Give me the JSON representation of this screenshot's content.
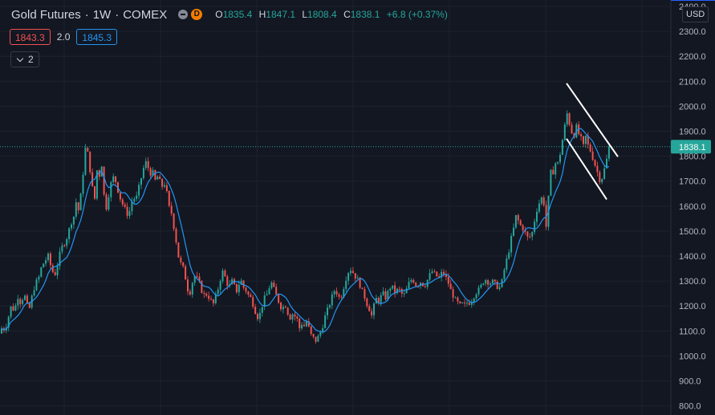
{
  "header": {
    "symbol": "Gold Futures",
    "separator": "·",
    "interval": "1W",
    "exchange": "COMEX",
    "delay_badge": "D",
    "ohlc": {
      "o_label": "O",
      "o_value": "1835.4",
      "h_label": "H",
      "h_value": "1847.1",
      "l_label": "L",
      "l_value": "1808.4",
      "c_label": "C",
      "c_value": "1838.1",
      "change": "+6.8 (+0.37%)"
    }
  },
  "indicator": {
    "value_red": "1843.3",
    "param": "2.0",
    "value_blue": "1845.3"
  },
  "collapse": {
    "count": "2"
  },
  "axis": {
    "currency": "USD",
    "ticks": [
      "2400.0",
      "2300.0",
      "2200.0",
      "2100.0",
      "2000.0",
      "1900.0",
      "1800.0",
      "1700.0",
      "1600.0",
      "1500.0",
      "1400.0",
      "1300.0",
      "1200.0",
      "1100.0",
      "1000.0",
      "900.0",
      "800.0"
    ],
    "last_price_label": "1838.1"
  },
  "colors": {
    "background": "#131722",
    "up": "#26a69a",
    "down": "#ef5350",
    "ma": "#2196f3",
    "grid": "#1e222d",
    "channel": "#ffffff"
  },
  "chart_data": {
    "type": "candlestick",
    "title": "Gold Futures · 1W · COMEX",
    "ylim": [
      800,
      2400
    ],
    "last_price": 1838.1,
    "path_points": [
      [
        0,
        1090
      ],
      [
        3,
        1120
      ],
      [
        6,
        1100
      ],
      [
        10,
        1150
      ],
      [
        14,
        1200
      ],
      [
        18,
        1180
      ],
      [
        22,
        1240
      ],
      [
        26,
        1210
      ],
      [
        30,
        1250
      ],
      [
        34,
        1200
      ],
      [
        36,
        1180
      ],
      [
        40,
        1240
      ],
      [
        44,
        1290
      ],
      [
        48,
        1310
      ],
      [
        52,
        1360
      ],
      [
        56,
        1380
      ],
      [
        60,
        1400
      ],
      [
        64,
        1350
      ],
      [
        68,
        1320
      ],
      [
        72,
        1370
      ],
      [
        76,
        1430
      ],
      [
        80,
        1450
      ],
      [
        84,
        1480
      ],
      [
        88,
        1530
      ],
      [
        92,
        1560
      ],
      [
        95,
        1620
      ],
      [
        98,
        1580
      ],
      [
        101,
        1650
      ],
      [
        104,
        1750
      ],
      [
        106,
        1820
      ],
      [
        108,
        1870
      ],
      [
        110,
        1780
      ],
      [
        112,
        1750
      ],
      [
        114,
        1700
      ],
      [
        116,
        1650
      ],
      [
        118,
        1630
      ],
      [
        120,
        1730
      ],
      [
        122,
        1760
      ],
      [
        124,
        1720
      ],
      [
        126,
        1780
      ],
      [
        128,
        1740
      ],
      [
        130,
        1620
      ],
      [
        133,
        1590
      ],
      [
        136,
        1660
      ],
      [
        139,
        1700
      ],
      [
        142,
        1720
      ],
      [
        145,
        1690
      ],
      [
        148,
        1650
      ],
      [
        151,
        1620
      ],
      [
        154,
        1600
      ],
      [
        157,
        1580
      ],
      [
        160,
        1560
      ],
      [
        163,
        1600
      ],
      [
        166,
        1640
      ],
      [
        169,
        1620
      ],
      [
        172,
        1660
      ],
      [
        175,
        1700
      ],
      [
        178,
        1740
      ],
      [
        181,
        1780
      ],
      [
        184,
        1760
      ],
      [
        187,
        1730
      ],
      [
        190,
        1740
      ],
      [
        193,
        1700
      ],
      [
        196,
        1720
      ],
      [
        199,
        1700
      ],
      [
        202,
        1680
      ],
      [
        205,
        1690
      ],
      [
        208,
        1650
      ],
      [
        211,
        1590
      ],
      [
        214,
        1570
      ],
      [
        217,
        1510
      ],
      [
        220,
        1450
      ],
      [
        222,
        1410
      ],
      [
        224,
        1350
      ],
      [
        226,
        1380
      ],
      [
        229,
        1340
      ],
      [
        232,
        1300
      ],
      [
        235,
        1250
      ],
      [
        238,
        1260
      ],
      [
        241,
        1320
      ],
      [
        244,
        1320
      ],
      [
        247,
        1300
      ],
      [
        250,
        1280
      ],
      [
        253,
        1240
      ],
      [
        256,
        1250
      ],
      [
        259,
        1240
      ],
      [
        262,
        1230
      ],
      [
        265,
        1200
      ],
      [
        268,
        1230
      ],
      [
        271,
        1260
      ],
      [
        274,
        1300
      ],
      [
        277,
        1340
      ],
      [
        280,
        1320
      ],
      [
        283,
        1290
      ],
      [
        286,
        1280
      ],
      [
        289,
        1300
      ],
      [
        292,
        1280
      ],
      [
        295,
        1260
      ],
      [
        298,
        1290
      ],
      [
        301,
        1300
      ],
      [
        304,
        1270
      ],
      [
        307,
        1260
      ],
      [
        310,
        1240
      ],
      [
        313,
        1230
      ],
      [
        316,
        1200
      ],
      [
        319,
        1170
      ],
      [
        322,
        1150
      ],
      [
        325,
        1180
      ],
      [
        328,
        1220
      ],
      [
        331,
        1240
      ],
      [
        334,
        1250
      ],
      [
        337,
        1300
      ],
      [
        340,
        1280
      ],
      [
        343,
        1250
      ],
      [
        346,
        1230
      ],
      [
        349,
        1200
      ],
      [
        352,
        1190
      ],
      [
        355,
        1210
      ],
      [
        358,
        1180
      ],
      [
        361,
        1150
      ],
      [
        364,
        1170
      ],
      [
        367,
        1160
      ],
      [
        370,
        1150
      ],
      [
        373,
        1110
      ],
      [
        376,
        1130
      ],
      [
        379,
        1120
      ],
      [
        382,
        1140
      ],
      [
        385,
        1110
      ],
      [
        388,
        1080
      ],
      [
        391,
        1070
      ],
      [
        394,
        1060
      ],
      [
        397,
        1080
      ],
      [
        400,
        1100
      ],
      [
        403,
        1130
      ],
      [
        406,
        1170
      ],
      [
        409,
        1190
      ],
      [
        412,
        1220
      ],
      [
        415,
        1250
      ],
      [
        418,
        1270
      ],
      [
        421,
        1240
      ],
      [
        424,
        1230
      ],
      [
        427,
        1260
      ],
      [
        430,
        1300
      ],
      [
        433,
        1330
      ],
      [
        436,
        1350
      ],
      [
        439,
        1340
      ],
      [
        442,
        1320
      ],
      [
        445,
        1310
      ],
      [
        448,
        1290
      ],
      [
        451,
        1260
      ],
      [
        454,
        1240
      ],
      [
        457,
        1210
      ],
      [
        460,
        1190
      ],
      [
        463,
        1160
      ],
      [
        466,
        1200
      ],
      [
        469,
        1230
      ],
      [
        472,
        1220
      ],
      [
        475,
        1240
      ],
      [
        478,
        1250
      ],
      [
        481,
        1230
      ],
      [
        484,
        1260
      ],
      [
        487,
        1280
      ],
      [
        490,
        1270
      ],
      [
        493,
        1250
      ],
      [
        496,
        1270
      ],
      [
        499,
        1260
      ],
      [
        502,
        1240
      ],
      [
        505,
        1250
      ],
      [
        508,
        1280
      ],
      [
        511,
        1300
      ],
      [
        514,
        1310
      ],
      [
        517,
        1290
      ],
      [
        520,
        1280
      ],
      [
        523,
        1300
      ],
      [
        526,
        1290
      ],
      [
        529,
        1280
      ],
      [
        532,
        1300
      ],
      [
        535,
        1320
      ],
      [
        538,
        1340
      ],
      [
        541,
        1330
      ],
      [
        544,
        1320
      ],
      [
        547,
        1310
      ],
      [
        550,
        1330
      ],
      [
        553,
        1330
      ],
      [
        556,
        1310
      ],
      [
        559,
        1290
      ],
      [
        562,
        1260
      ],
      [
        565,
        1240
      ],
      [
        568,
        1220
      ],
      [
        571,
        1210
      ],
      [
        574,
        1200
      ],
      [
        577,
        1210
      ],
      [
        580,
        1200
      ],
      [
        583,
        1220
      ],
      [
        586,
        1210
      ],
      [
        589,
        1230
      ],
      [
        592,
        1250
      ],
      [
        595,
        1260
      ],
      [
        598,
        1270
      ],
      [
        601,
        1290
      ],
      [
        604,
        1310
      ],
      [
        607,
        1300
      ],
      [
        610,
        1290
      ],
      [
        613,
        1300
      ],
      [
        616,
        1290
      ],
      [
        619,
        1280
      ],
      [
        622,
        1270
      ],
      [
        625,
        1290
      ],
      [
        628,
        1340
      ],
      [
        631,
        1380
      ],
      [
        634,
        1420
      ],
      [
        637,
        1470
      ],
      [
        640,
        1510
      ],
      [
        643,
        1560
      ],
      [
        646,
        1540
      ],
      [
        649,
        1520
      ],
      [
        652,
        1510
      ],
      [
        655,
        1490
      ],
      [
        658,
        1470
      ],
      [
        661,
        1480
      ],
      [
        664,
        1500
      ],
      [
        667,
        1560
      ],
      [
        670,
        1600
      ],
      [
        673,
        1620
      ],
      [
        676,
        1640
      ],
      [
        679,
        1590
      ],
      [
        681,
        1500
      ],
      [
        683,
        1610
      ],
      [
        685,
        1700
      ],
      [
        687,
        1750
      ],
      [
        689,
        1730
      ],
      [
        691,
        1780
      ],
      [
        694,
        1760
      ],
      [
        697,
        1790
      ],
      [
        700,
        1850
      ],
      [
        703,
        1900
      ],
      [
        706,
        1980
      ],
      [
        709,
        1940
      ],
      [
        712,
        1900
      ],
      [
        715,
        1880
      ],
      [
        718,
        1920
      ],
      [
        721,
        1890
      ],
      [
        724,
        1870
      ],
      [
        727,
        1840
      ],
      [
        730,
        1880
      ],
      [
        733,
        1840
      ],
      [
        736,
        1820
      ],
      [
        739,
        1790
      ],
      [
        742,
        1760
      ],
      [
        745,
        1730
      ],
      [
        748,
        1700
      ],
      [
        751,
        1720
      ],
      [
        754,
        1760
      ],
      [
        757,
        1800
      ],
      [
        759,
        1838
      ]
    ],
    "channel": {
      "upper": [
        [
          706,
          2092
        ],
        [
          770,
          1798
        ]
      ],
      "lower": [
        [
          706,
          1870
        ],
        [
          756,
          1627
        ]
      ]
    }
  }
}
